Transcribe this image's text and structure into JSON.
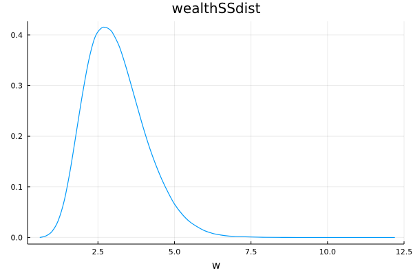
{
  "chart_data": {
    "type": "line",
    "title": "wealthSSdist",
    "xlabel": "w",
    "ylabel": "",
    "xlim": [
      0.2,
      12.5
    ],
    "ylim": [
      -0.013,
      0.427
    ],
    "x_ticks": [
      2.5,
      5.0,
      7.5,
      10.0,
      12.5
    ],
    "x_tick_labels": [
      "2.5",
      "5.0",
      "7.5",
      "10.0",
      "12.5"
    ],
    "y_ticks": [
      0.0,
      0.1,
      0.2,
      0.3,
      0.4
    ],
    "y_tick_labels": [
      "0.0",
      "0.1",
      "0.2",
      "0.3",
      "0.4"
    ],
    "grid": true,
    "legend": "none",
    "series": [
      {
        "color": "#009AFA",
        "x": [
          0.6,
          0.8,
          1.0,
          1.2,
          1.4,
          1.6,
          1.8,
          2.0,
          2.2,
          2.4,
          2.6,
          2.75,
          2.9,
          3.0,
          3.2,
          3.4,
          3.6,
          3.8,
          4.0,
          4.2,
          4.4,
          4.6,
          4.8,
          5.0,
          5.25,
          5.5,
          5.75,
          6.0,
          6.25,
          6.5,
          6.75,
          7.0,
          7.5,
          8.0,
          8.5,
          9.0,
          10.0,
          11.0,
          12.2
        ],
        "y": [
          0.0,
          0.003,
          0.012,
          0.033,
          0.073,
          0.135,
          0.21,
          0.285,
          0.35,
          0.395,
          0.413,
          0.415,
          0.41,
          0.402,
          0.377,
          0.34,
          0.298,
          0.255,
          0.213,
          0.175,
          0.142,
          0.113,
          0.088,
          0.066,
          0.046,
          0.031,
          0.021,
          0.013,
          0.008,
          0.005,
          0.003,
          0.002,
          0.001,
          0.0003,
          0.0001,
          0.0,
          0.0,
          0.0,
          0.0
        ]
      }
    ]
  }
}
